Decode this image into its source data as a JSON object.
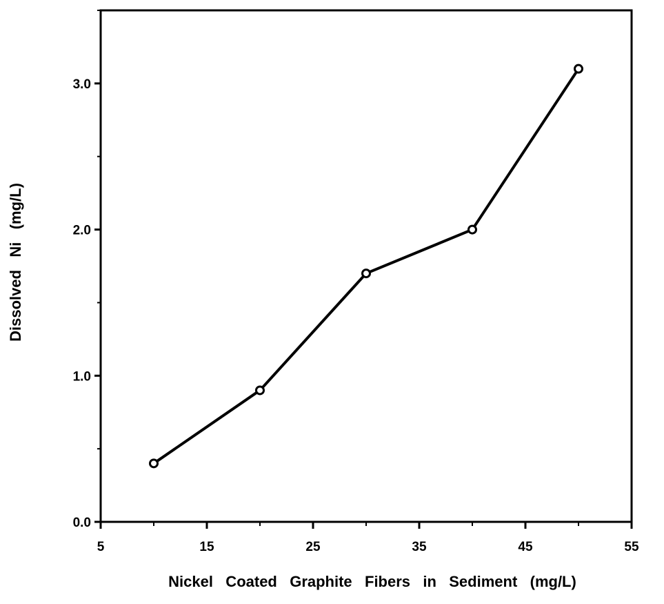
{
  "chart_data": {
    "type": "line",
    "title": "",
    "xlabel": "Nickel   Coated   Graphite   Fibers   in   Sediment   (mg/L)",
    "ylabel": "Dissolved   Ni   (mg/L)",
    "xlim": [
      5,
      55
    ],
    "ylim": [
      0,
      3.5
    ],
    "x_ticks": [
      "5",
      "15",
      "25",
      "35",
      "45",
      "55"
    ],
    "y_ticks": [
      "0.0",
      "1.0",
      "2.0",
      "3.0"
    ],
    "grid": false,
    "legend": "none",
    "series": [
      {
        "x": [
          10,
          20,
          30,
          40,
          50
        ],
        "values": [
          0.4,
          0.9,
          1.7,
          2.0,
          3.1
        ],
        "marker": "open-circle",
        "color": "#000000"
      }
    ]
  }
}
